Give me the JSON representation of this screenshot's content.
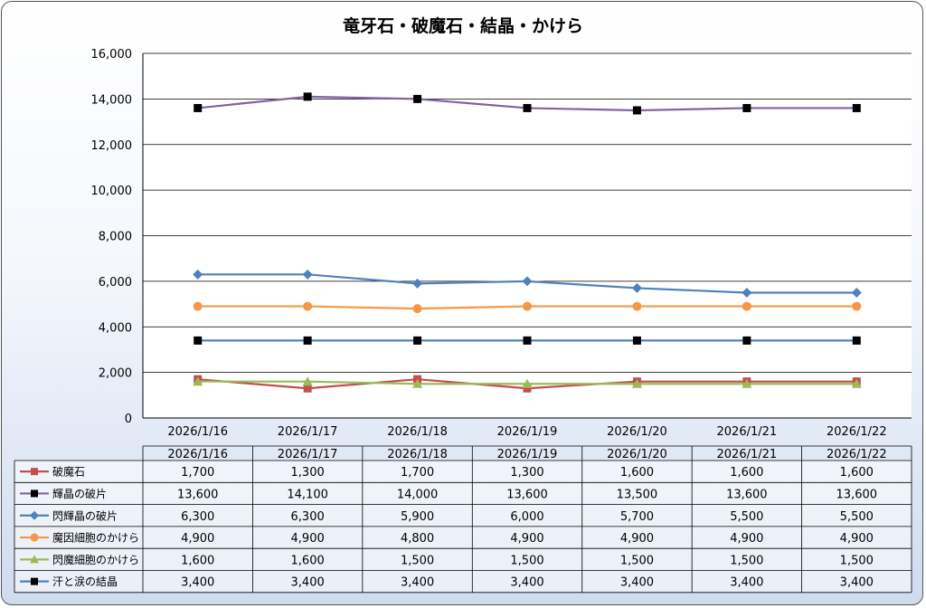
{
  "chart_data": {
    "type": "line",
    "title": "竜牙石・破魔石・結晶・かけら",
    "categories": [
      "2026/1/16",
      "2026/1/17",
      "2026/1/18",
      "2026/1/19",
      "2026/1/20",
      "2026/1/21",
      "2026/1/22"
    ],
    "y_ticks": [
      "0",
      "2,000",
      "4,000",
      "6,000",
      "8,000",
      "10,000",
      "12,000",
      "14,000",
      "16,000"
    ],
    "ylim": [
      0,
      16000
    ],
    "grid": true,
    "legend": "data-table",
    "series": [
      {
        "name": "破魔石",
        "values": [
          1700,
          1300,
          1700,
          1300,
          1600,
          1600,
          1600
        ],
        "labels": [
          "1,700",
          "1,300",
          "1,700",
          "1,300",
          "1,600",
          "1,600",
          "1,600"
        ],
        "color": "#c0504d",
        "marker": "square"
      },
      {
        "name": "輝晶の破片",
        "values": [
          13600,
          14100,
          14000,
          13600,
          13500,
          13600,
          13600
        ],
        "labels": [
          "13,600",
          "14,100",
          "14,000",
          "13,600",
          "13,500",
          "13,600",
          "13,600"
        ],
        "color": "#8064a2",
        "marker": "square-black"
      },
      {
        "name": "閃輝晶の破片",
        "values": [
          6300,
          6300,
          5900,
          6000,
          5700,
          5500,
          5500
        ],
        "labels": [
          "6,300",
          "6,300",
          "5,900",
          "6,000",
          "5,700",
          "5,500",
          "5,500"
        ],
        "color": "#4f81bd",
        "marker": "diamond"
      },
      {
        "name": "魔因細胞のかけら",
        "values": [
          4900,
          4900,
          4800,
          4900,
          4900,
          4900,
          4900
        ],
        "labels": [
          "4,900",
          "4,900",
          "4,800",
          "4,900",
          "4,900",
          "4,900",
          "4,900"
        ],
        "color": "#f79646",
        "marker": "circle"
      },
      {
        "name": "閃魔細胞のかけら",
        "values": [
          1600,
          1600,
          1500,
          1500,
          1500,
          1500,
          1500
        ],
        "labels": [
          "1,600",
          "1,600",
          "1,500",
          "1,500",
          "1,500",
          "1,500",
          "1,500"
        ],
        "color": "#9bbb59",
        "marker": "triangle"
      },
      {
        "name": "汗と涙の結晶",
        "values": [
          3400,
          3400,
          3400,
          3400,
          3400,
          3400,
          3400
        ],
        "labels": [
          "3,400",
          "3,400",
          "3,400",
          "3,400",
          "3,400",
          "3,400",
          "3,400"
        ],
        "color": "#4f81bd",
        "marker": "square-black"
      }
    ]
  }
}
